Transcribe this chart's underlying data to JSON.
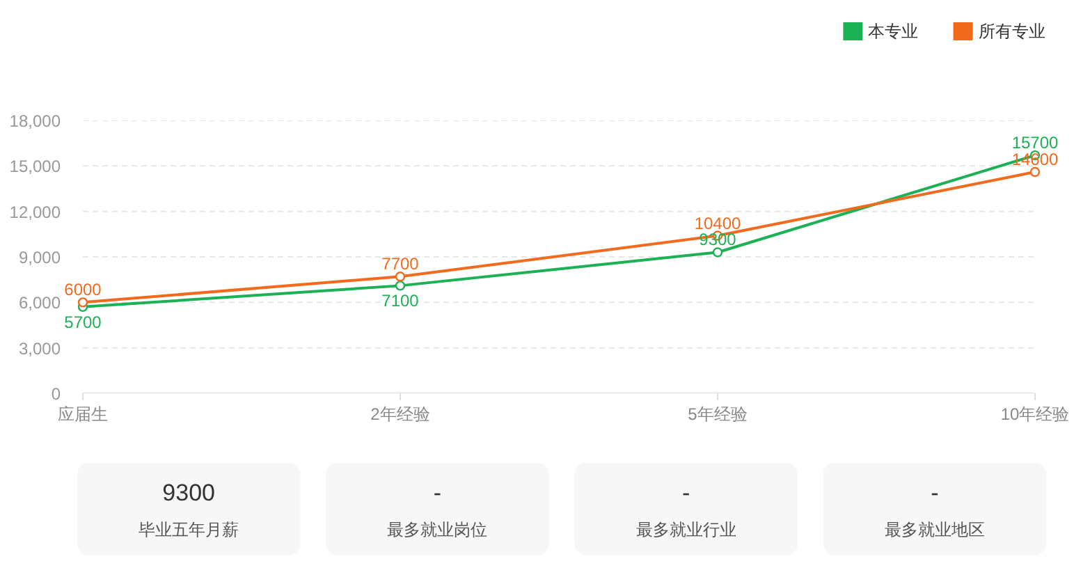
{
  "chart_data": [
    {
      "type": "line",
      "categories": [
        "应届生",
        "2年经验",
        "5年经验",
        "10年经验"
      ],
      "series": [
        {
          "name": "本专业",
          "color": "#1db155",
          "values": [
            5700,
            7100,
            9300,
            15700
          ]
        },
        {
          "name": "所有专业",
          "color": "#f26b1d",
          "values": [
            6000,
            7700,
            10400,
            14600
          ]
        }
      ],
      "ylim": [
        0,
        18000
      ],
      "yticks": [
        0,
        {
          "value": 3000,
          "label": "3,000"
        },
        {
          "value": 6000,
          "label": "6,000"
        },
        {
          "value": 9000,
          "label": "9,000"
        },
        {
          "value": 12000,
          "label": "12,000"
        },
        {
          "value": 15000,
          "label": "15,000"
        },
        {
          "value": 18000,
          "label": "18,000"
        }
      ],
      "grid": "y",
      "legend": "top right",
      "marker": "circle",
      "data_labels": true
    },
    {
      "type": "other",
      "categories": [
        "毕业五年月薪",
        "最多就业岗位",
        "最多就业行业",
        "最多就业地区"
      ],
      "value_labels": [
        "9300",
        "-",
        "-",
        "-"
      ]
    }
  ]
}
